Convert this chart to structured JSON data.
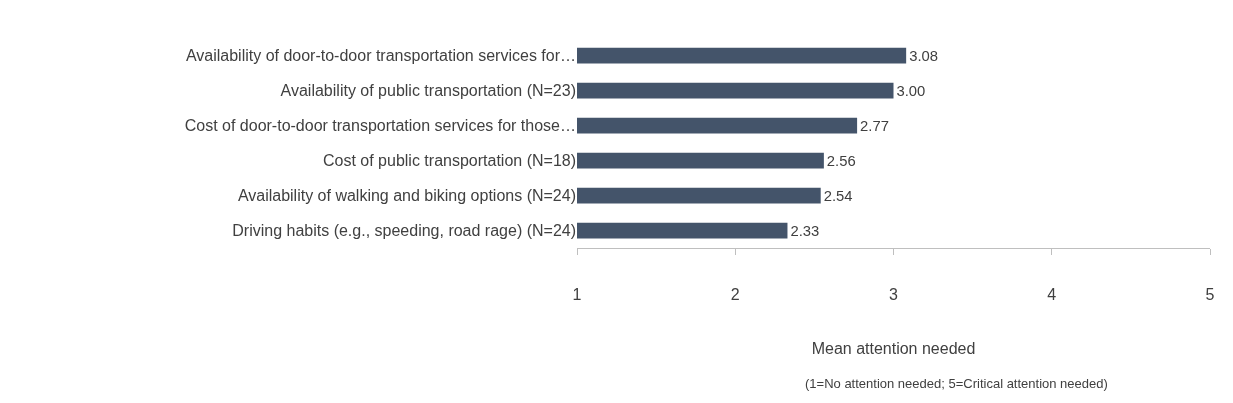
{
  "chart_data": {
    "type": "bar",
    "orientation": "horizontal",
    "xlabel": "Mean attention needed",
    "annotations": [
      "(1=No attention needed; 5=Critical attention needed)"
    ],
    "categories": [
      "Availability of door-to-door transportation services for…",
      "Availability of public transportation (N=23)",
      "Cost of door-to-door transportation services for those…",
      "Cost of public transportation (N=18)",
      "Availability of walking and biking options (N=24)",
      "Driving habits (e.g., speeding, road rage) (N=24)"
    ],
    "values": [
      3.08,
      3.0,
      2.77,
      2.56,
      2.54,
      2.33
    ],
    "value_labels": [
      "3.08",
      "3.00",
      "2.77",
      "2.56",
      "2.54",
      "2.33"
    ],
    "color": "#44546a",
    "xlim": [
      1,
      5
    ],
    "xticks": [
      1,
      2,
      3,
      4,
      5
    ],
    "grid": false,
    "legend": false
  }
}
